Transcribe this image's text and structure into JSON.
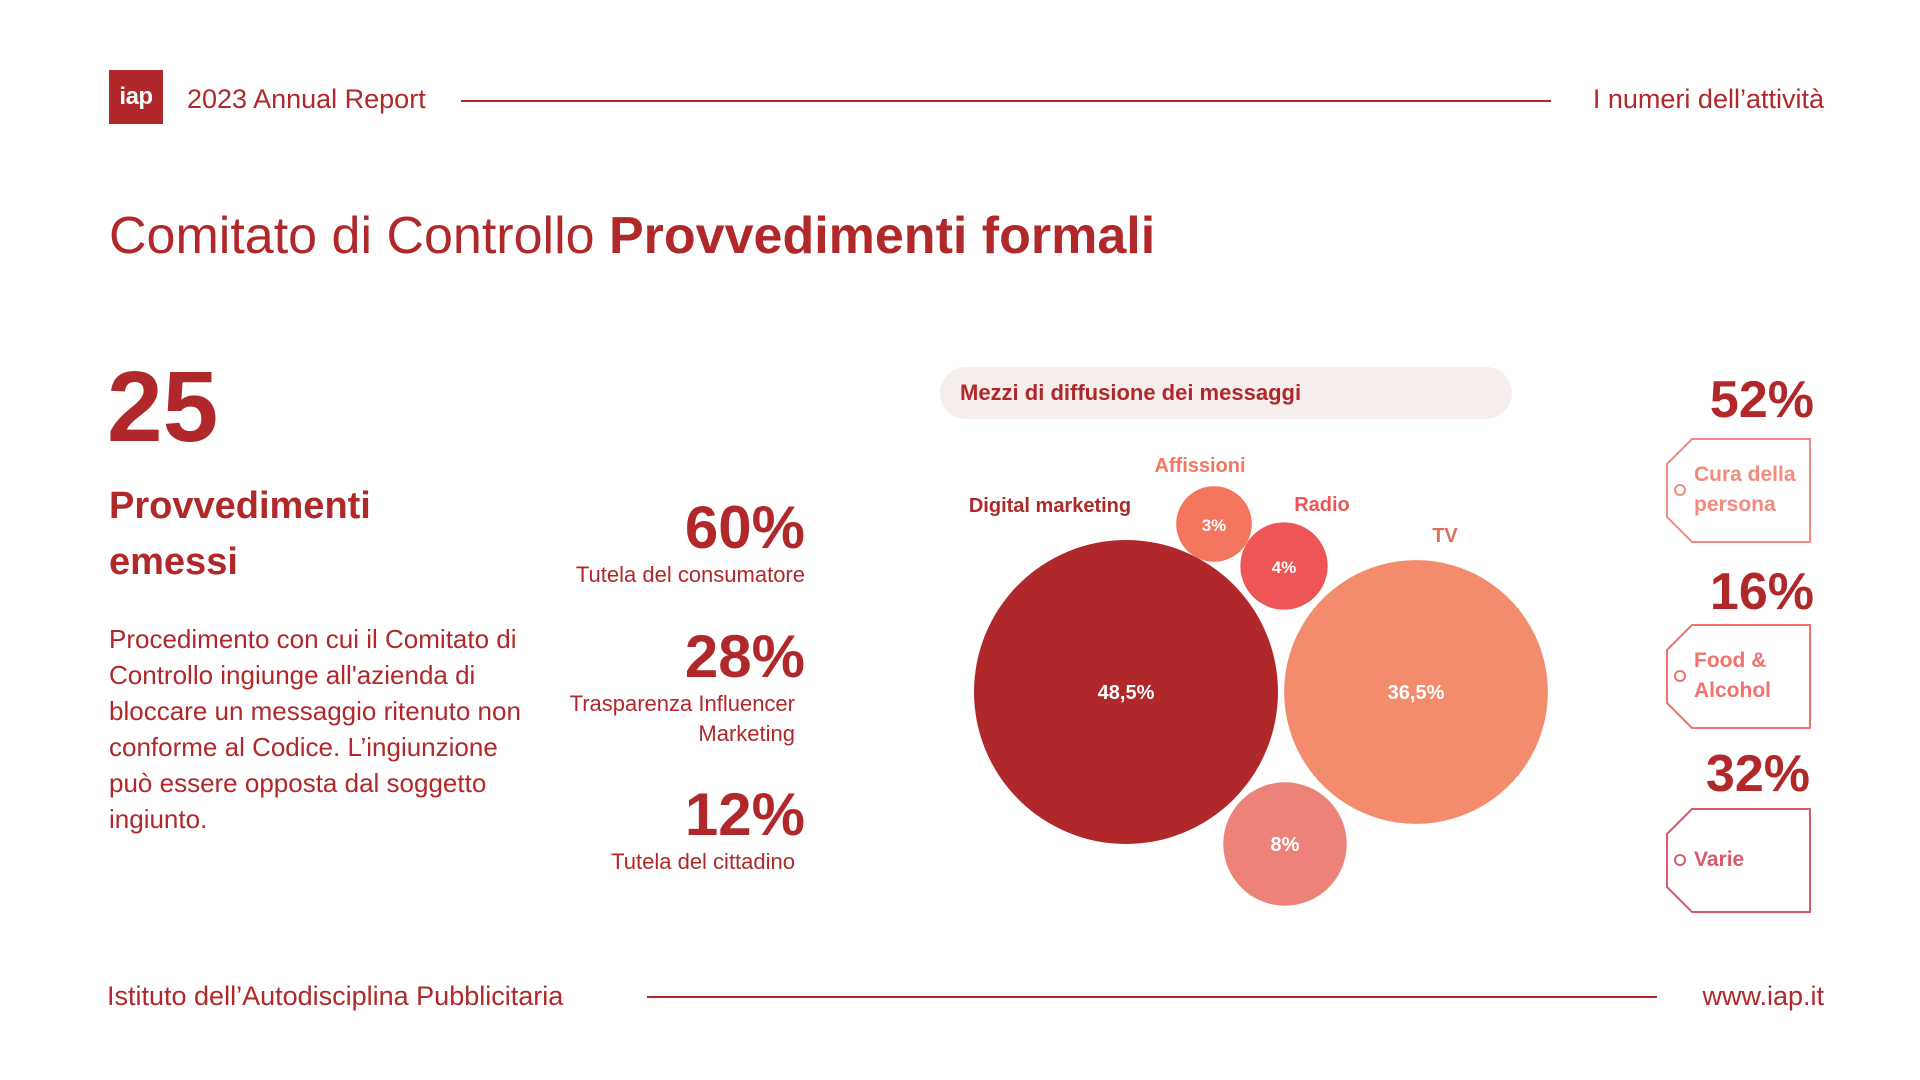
{
  "header": {
    "logo_text": "iap",
    "left_text": "2023 Annual Report",
    "right_text": "I numeri dell’attività"
  },
  "title": {
    "regular": "Comitato di Controllo ",
    "bold": "Provvedimenti formali"
  },
  "summary": {
    "count": "25",
    "label": "Provvedimenti emessi",
    "description": "Procedimento con cui il Comitato di Controllo ingiunge all'azienda di bloccare un messaggio ritenuto non conforme al Codice. L’ingiunzione può essere opposta dal soggetto ingiunto."
  },
  "stats": [
    {
      "value": "60%",
      "label": "Tutela del consumatore"
    },
    {
      "value": "28%",
      "label": "Trasparenza Influencer Marketing"
    },
    {
      "value": "12%",
      "label": "Tutela del cittadino"
    }
  ],
  "chart_data": {
    "type": "bubble",
    "title": "Mezzi di diffusione dei messaggi",
    "bubbles": [
      {
        "name": "Digital marketing",
        "label": "48,5%",
        "value": 48.5,
        "color": "#b0282a"
      },
      {
        "name": "TV",
        "label": "36,5%",
        "value": 36.5,
        "color": "#f28c6c"
      },
      {
        "name": "",
        "label": "8%",
        "value": 8,
        "color": "#ec8278"
      },
      {
        "name": "Radio",
        "label": "4%",
        "value": 4,
        "color": "#ee5556"
      },
      {
        "name": "Affissioni",
        "label": "3%",
        "value": 3,
        "color": "#f5765f"
      }
    ]
  },
  "sectors": [
    {
      "value": "52%",
      "label": "Cura della persona",
      "color": "#f28a80"
    },
    {
      "value": "16%",
      "label": "Food & Alcohol",
      "color": "#f0726a"
    },
    {
      "value": "32%",
      "label": "Varie",
      "color": "#d85a68"
    }
  ],
  "footer": {
    "left_text": "Istituto dell’Autodisciplina Pubblicitaria",
    "right_text": "www.iap.it"
  },
  "colors": {
    "primary": "#b0282a",
    "pill_background": "#f6eded"
  }
}
